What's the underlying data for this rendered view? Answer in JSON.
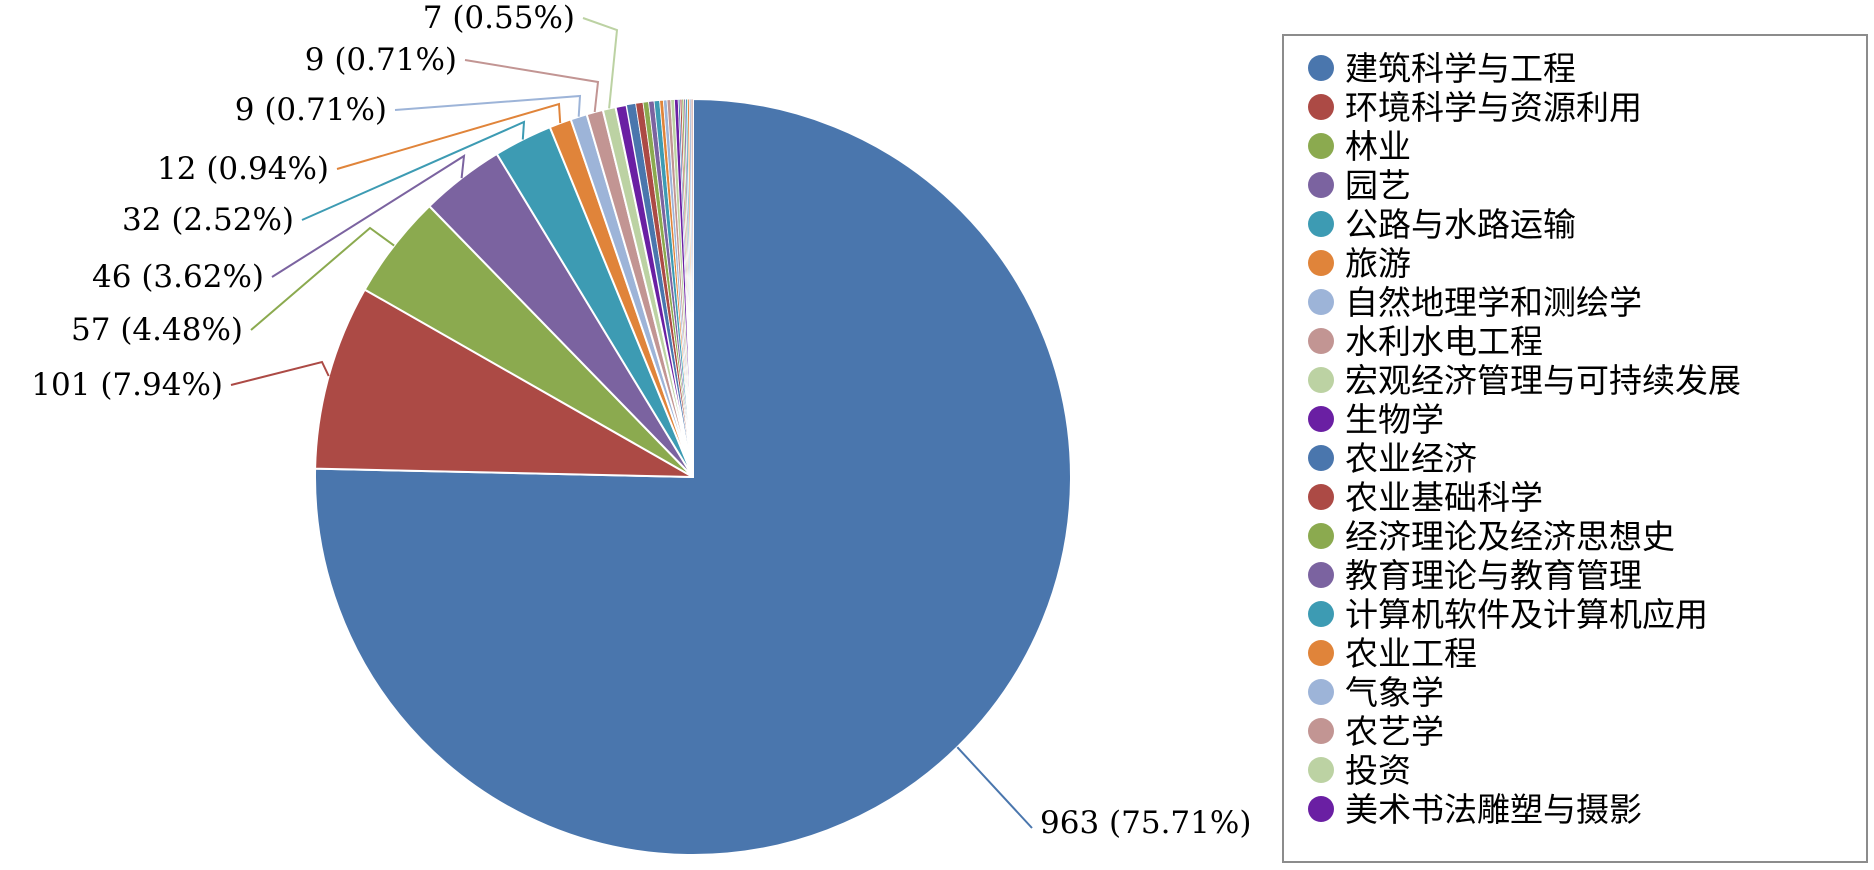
{
  "chart_data": {
    "type": "pie",
    "title": "",
    "legend_position": "right",
    "data_label_format": "value (percent)",
    "slices": [
      {
        "name": "建筑科学与工程",
        "value": 963,
        "label": "963 (75.71%)",
        "color": "#4a76ad"
      },
      {
        "name": "环境科学与资源利用",
        "value": 101,
        "label": "101 (7.94%)",
        "color": "#ac4a45"
      },
      {
        "name": "林业",
        "value": 57,
        "label": "57 (4.48%)",
        "color": "#8baa4f"
      },
      {
        "name": "园艺",
        "value": 46,
        "label": "46 (3.62%)",
        "color": "#7b63a0"
      },
      {
        "name": "公路与水路运输",
        "value": 32,
        "label": "32 (2.52%)",
        "color": "#3d9bb3"
      },
      {
        "name": "旅游",
        "value": 12,
        "label": "12 (0.94%)",
        "color": "#e0843a"
      },
      {
        "name": "自然地理学和测绘学",
        "value": 9,
        "label": "9 (0.71%)",
        "color": "#9db4d8"
      },
      {
        "name": "水利水电工程",
        "value": 9,
        "label": "9 (0.71%)",
        "color": "#c29593"
      },
      {
        "name": "宏观经济管理与可持续发展",
        "value": 7,
        "label": "7 (0.55%)",
        "color": "#bcd2a3"
      },
      {
        "name": "生物学",
        "value": 6,
        "label": "",
        "color": "#6a1fa3"
      },
      {
        "name": "农业经济",
        "value": 5,
        "label": "",
        "color": "#4a76ad"
      },
      {
        "name": "农业基础科学",
        "value": 4,
        "label": "",
        "color": "#ac4a45"
      },
      {
        "name": "经济理论及经济思想史",
        "value": 3,
        "label": "",
        "color": "#8baa4f"
      },
      {
        "name": "教育理论与教育管理",
        "value": 3,
        "label": "",
        "color": "#7b63a0"
      },
      {
        "name": "计算机软件及计算机应用",
        "value": 3,
        "label": "",
        "color": "#3d9bb3"
      },
      {
        "name": "农业工程",
        "value": 2,
        "label": "",
        "color": "#e0843a"
      },
      {
        "name": "气象学",
        "value": 2,
        "label": "",
        "color": "#9db4d8"
      },
      {
        "name": "农艺学",
        "value": 2,
        "label": "",
        "color": "#c29593"
      },
      {
        "name": "投资",
        "value": 2,
        "label": "",
        "color": "#bcd2a3"
      },
      {
        "name": "美术书法雕塑与摄影",
        "value": 2,
        "label": "",
        "color": "#6a1fa3"
      }
    ],
    "unlisted_small_slices": 8
  }
}
